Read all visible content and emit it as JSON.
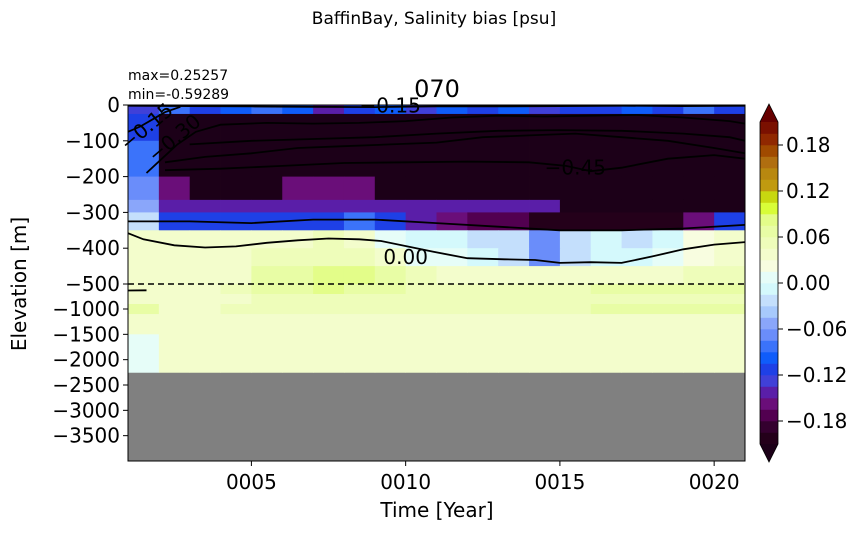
{
  "figure_title": "BaffinBay, Salinity bias [psu]",
  "panel_title": "070",
  "stats": {
    "max": "max=0.25257",
    "min": "min=-0.59289"
  },
  "chart_data": {
    "type": "heatmap",
    "title": "BaffinBay, Salinity bias [psu]",
    "xlabel": "Time [Year]",
    "ylabel": "Elevation [m]",
    "xlim": [
      1,
      21
    ],
    "x_ticks": [
      5,
      10,
      15,
      20
    ],
    "x_tick_labels": [
      "0005",
      "0010",
      "0015",
      "0020"
    ],
    "y_tick_labels": [
      "0",
      "−100",
      "−200",
      "−300",
      "−400",
      "−500",
      "−1000",
      "−1500",
      "−2000",
      "−2500",
      "−3000",
      "−3500"
    ],
    "y_axis_note": "piecewise-linear: 0 to -500 m expanded, -500 to -4000 m compressed",
    "reference_line": {
      "depth": -500,
      "style": "dashed"
    },
    "missing_color": "#808080",
    "missing_below_depth": -2250,
    "x_centers": [
      1.5,
      2.5,
      3.5,
      4.5,
      5.5,
      6.5,
      7.5,
      8.5,
      9.5,
      10.5,
      11.5,
      12.5,
      13.5,
      14.5,
      15.5,
      16.5,
      17.5,
      18.5,
      19.5,
      20.5
    ],
    "depth_edges": [
      0,
      -25,
      -100,
      -200,
      -265,
      -300,
      -350,
      -400,
      -450,
      -500,
      -700,
      -900,
      -1100,
      -1500,
      -2250
    ],
    "values": [
      [
        -0.13,
        -0.09,
        -0.12,
        -0.1,
        -0.08,
        -0.1,
        -0.14,
        -0.12,
        -0.1,
        -0.13,
        -0.1,
        -0.12,
        -0.1,
        -0.13,
        -0.12,
        -0.11,
        -0.1,
        -0.12,
        -0.09,
        -0.12
      ],
      [
        -0.11,
        -0.22,
        -0.22,
        -0.22,
        -0.22,
        -0.22,
        -0.22,
        -0.22,
        -0.22,
        -0.22,
        -0.22,
        -0.22,
        -0.22,
        -0.22,
        -0.22,
        -0.22,
        -0.22,
        -0.22,
        -0.22,
        -0.22
      ],
      [
        -0.09,
        -0.22,
        -0.22,
        -0.22,
        -0.22,
        -0.22,
        -0.22,
        -0.22,
        -0.22,
        -0.22,
        -0.22,
        -0.22,
        -0.22,
        -0.22,
        -0.22,
        -0.22,
        -0.22,
        -0.22,
        -0.22,
        -0.22
      ],
      [
        -0.07,
        -0.16,
        -0.22,
        -0.22,
        -0.22,
        -0.16,
        -0.16,
        -0.16,
        -0.22,
        -0.22,
        -0.22,
        -0.22,
        -0.22,
        -0.22,
        -0.22,
        -0.22,
        -0.22,
        -0.22,
        -0.22,
        -0.22
      ],
      [
        -0.06,
        -0.15,
        -0.15,
        -0.15,
        -0.15,
        -0.15,
        -0.15,
        -0.15,
        -0.15,
        -0.15,
        -0.15,
        -0.15,
        -0.15,
        -0.15,
        -0.22,
        -0.22,
        -0.22,
        -0.22,
        -0.22,
        -0.22
      ],
      [
        -0.03,
        -0.12,
        -0.12,
        -0.12,
        -0.11,
        -0.11,
        -0.11,
        -0.09,
        -0.12,
        -0.14,
        -0.16,
        -0.17,
        -0.17,
        -0.2,
        -0.21,
        -0.21,
        -0.21,
        -0.2,
        -0.16,
        -0.12
      ],
      [
        0.04,
        0.04,
        0.04,
        0.03,
        0.04,
        0.04,
        0.05,
        0.04,
        0.01,
        -0.01,
        -0.01,
        -0.02,
        -0.03,
        -0.07,
        -0.02,
        -0.01,
        -0.02,
        -0.01,
        0.02,
        0.03
      ],
      [
        0.04,
        0.03,
        0.03,
        0.04,
        0.05,
        0.05,
        0.05,
        0.05,
        0.03,
        0.01,
        0.0,
        -0.01,
        -0.02,
        -0.07,
        -0.02,
        -0.01,
        -0.01,
        0.0,
        0.02,
        0.03
      ],
      [
        0.03,
        0.03,
        0.03,
        0.04,
        0.06,
        0.06,
        0.08,
        0.08,
        0.06,
        0.05,
        0.04,
        0.03,
        0.03,
        0.03,
        0.03,
        0.03,
        0.04,
        0.04,
        0.05,
        0.05
      ],
      [
        0.04,
        0.04,
        0.04,
        0.05,
        0.06,
        0.06,
        0.08,
        0.07,
        0.06,
        0.05,
        0.05,
        0.05,
        0.05,
        0.05,
        0.05,
        0.06,
        0.06,
        0.07,
        0.06,
        0.06
      ],
      [
        0.04,
        0.04,
        0.04,
        0.04,
        0.05,
        0.05,
        0.05,
        0.05,
        0.05,
        0.05,
        0.05,
        0.05,
        0.05,
        0.05,
        0.05,
        0.05,
        0.05,
        0.05,
        0.05,
        0.05
      ],
      [
        0.06,
        0.04,
        0.04,
        0.05,
        0.05,
        0.05,
        0.05,
        0.05,
        0.05,
        0.05,
        0.05,
        0.05,
        0.05,
        0.05,
        0.05,
        0.06,
        0.06,
        0.06,
        0.06,
        0.06
      ],
      [
        0.04,
        0.04,
        0.04,
        0.04,
        0.04,
        0.04,
        0.04,
        0.04,
        0.04,
        0.04,
        0.04,
        0.04,
        0.04,
        0.04,
        0.04,
        0.04,
        0.04,
        0.04,
        0.04,
        0.04
      ],
      [
        0.01,
        0.03,
        0.03,
        0.03,
        0.03,
        0.03,
        0.03,
        0.03,
        0.03,
        0.03,
        0.03,
        0.03,
        0.03,
        0.03,
        0.03,
        0.03,
        0.03,
        0.03,
        0.03,
        0.03
      ]
    ],
    "contours": [
      {
        "label": "−0.15",
        "label_x": 1.6,
        "label_depth": -60,
        "points": [
          [
            1,
            -75
          ],
          [
            1.4,
            -60
          ],
          [
            1.8,
            -40
          ],
          [
            2.2,
            -20
          ],
          [
            2.7,
            -5
          ]
        ]
      },
      {
        "label": "−0.30",
        "label_x": 2.5,
        "label_depth": -92,
        "points": [
          [
            1.6,
            -190
          ],
          [
            2.1,
            -150
          ],
          [
            2.6,
            -110
          ],
          [
            3.2,
            -75
          ],
          [
            4,
            -55
          ],
          [
            5.5,
            -50
          ],
          [
            7,
            -52
          ],
          [
            8.5,
            -50
          ],
          [
            10,
            -45
          ],
          [
            11.5,
            -35
          ],
          [
            13,
            -30
          ],
          [
            14.5,
            -32
          ],
          [
            16,
            -30
          ],
          [
            17.5,
            -28
          ],
          [
            19,
            -35
          ],
          [
            20.5,
            -45
          ],
          [
            21,
            -52
          ]
        ]
      },
      {
        "label": "−0.45",
        "label_x": 15.5,
        "label_depth": -175,
        "points": [
          [
            2.2,
            -160
          ],
          [
            3.5,
            -145
          ],
          [
            5,
            -135
          ],
          [
            6.5,
            -120
          ],
          [
            8,
            -115
          ],
          [
            9.5,
            -110
          ],
          [
            11,
            -105
          ],
          [
            12.5,
            -90
          ],
          [
            14,
            -85
          ],
          [
            15.5,
            -80
          ],
          [
            17,
            -90
          ],
          [
            18.5,
            -100
          ],
          [
            20,
            -120
          ],
          [
            21,
            -135
          ]
        ]
      },
      {
        "label": "",
        "points": [
          [
            3,
            -110
          ],
          [
            5,
            -100
          ],
          [
            7,
            -95
          ],
          [
            9,
            -90
          ],
          [
            11,
            -80
          ],
          [
            13,
            -72
          ],
          [
            15,
            -70
          ],
          [
            17,
            -72
          ],
          [
            19,
            -80
          ],
          [
            20.5,
            -90
          ],
          [
            21,
            -100
          ]
        ]
      },
      {
        "label": "",
        "points": [
          [
            2.2,
            -182
          ],
          [
            4,
            -178
          ],
          [
            6,
            -170
          ],
          [
            8,
            -162
          ],
          [
            10,
            -160
          ],
          [
            12,
            -158
          ],
          [
            14,
            -160
          ],
          [
            15.2,
            -170
          ],
          [
            16,
            -185
          ],
          [
            17,
            -175
          ],
          [
            18.5,
            -150
          ],
          [
            20,
            -140
          ],
          [
            21,
            -150
          ]
        ]
      },
      {
        "label": "−0.15",
        "label_x": 9.5,
        "label_depth": -2,
        "points": [
          [
            1,
            -2
          ],
          [
            3,
            -3
          ],
          [
            5,
            -4
          ],
          [
            7,
            -5
          ],
          [
            9,
            -6
          ],
          [
            11,
            -4
          ],
          [
            13,
            -4
          ],
          [
            15,
            -3
          ],
          [
            17,
            -2
          ],
          [
            19,
            -3
          ],
          [
            21,
            -2
          ]
        ]
      },
      {
        "label": "",
        "points": [
          [
            1,
            -325
          ],
          [
            3,
            -325
          ],
          [
            5,
            -330
          ],
          [
            7,
            -320
          ],
          [
            9,
            -320
          ],
          [
            11,
            -330
          ],
          [
            13,
            -340
          ],
          [
            15,
            -350
          ],
          [
            17,
            -350
          ],
          [
            19,
            -345
          ],
          [
            21,
            -335
          ]
        ]
      },
      {
        "label": "0.00",
        "label_x": 10.0,
        "label_depth": -425,
        "points": [
          [
            1,
            -358
          ],
          [
            1.5,
            -375
          ],
          [
            2.5,
            -392
          ],
          [
            3.5,
            -398
          ],
          [
            4.5,
            -395
          ],
          [
            5.5,
            -385
          ],
          [
            6.5,
            -378
          ],
          [
            7.5,
            -373
          ],
          [
            8.5,
            -375
          ],
          [
            9.2,
            -380
          ],
          [
            10.9,
            -410
          ],
          [
            12,
            -428
          ],
          [
            13.2,
            -431
          ],
          [
            14.2,
            -433
          ],
          [
            15,
            -441
          ],
          [
            16,
            -439
          ],
          [
            17,
            -441
          ],
          [
            18,
            -423
          ],
          [
            19,
            -403
          ],
          [
            20,
            -390
          ],
          [
            21,
            -383
          ]
        ]
      },
      {
        "label": "",
        "points": [
          [
            1,
            -630
          ],
          [
            1.6,
            -625
          ]
        ]
      }
    ],
    "colorbar": {
      "ticks": [
        0.18,
        0.12,
        0.06,
        0.0,
        -0.06,
        -0.12,
        -0.18
      ],
      "tick_labels": [
        "0.18",
        "0.12",
        "0.06",
        "0.00",
        "−0.06",
        "−0.12",
        "−0.18"
      ],
      "range": [
        -0.21,
        0.21
      ],
      "extend": "both",
      "colors": [
        "#24001a",
        "#34002f",
        "#520050",
        "#6a0e79",
        "#5a1ea8",
        "#4040d8",
        "#1e40e6",
        "#0f5cfa",
        "#3b73fa",
        "#6a8dfa",
        "#8aa6fa",
        "#a7c9fc",
        "#c4dffc",
        "#d4f9fc",
        "#e6fdf8",
        "#f8fde0",
        "#f3fdcc",
        "#eefdba",
        "#e8fda5",
        "#e3fd89",
        "#d8fd38",
        "#c8d810",
        "#c09a10",
        "#b88810",
        "#b06e10",
        "#a04a00",
        "#902800",
        "#7a1000"
      ],
      "under_color": "#1c0018",
      "over_color": "#660000"
    }
  }
}
